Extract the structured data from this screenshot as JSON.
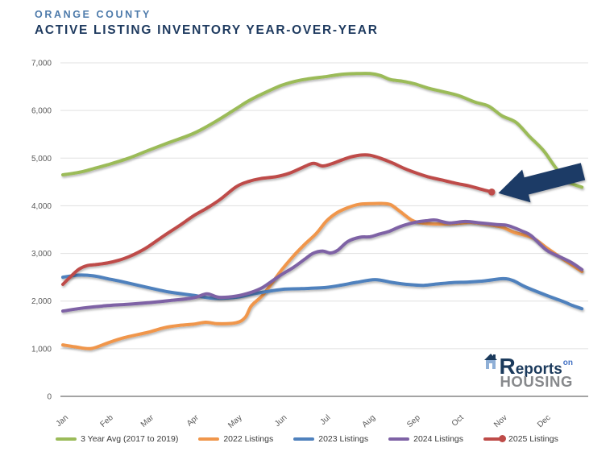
{
  "header": {
    "kicker": "ORANGE COUNTY",
    "title": "ACTIVE LISTING INVENTORY YEAR-OVER-YEAR"
  },
  "logo": {
    "word1": "Reports",
    "word2": "on",
    "word3": "HOUSING"
  },
  "colors": {
    "kicker": "#4E7BAB",
    "title": "#1E3A5F",
    "gridline": "#E0E0E0",
    "axis_line": "#6E6E6E",
    "axis_text": "#595959",
    "legend_text": "#3A3A3A",
    "logo_navy": "#1B3A5C",
    "logo_blue": "#4472C4",
    "logo_gray": "#87898C",
    "logo_house": "#8FAFD6"
  },
  "chart_data": {
    "type": "line",
    "title": "Active Listing Inventory Year-Over-Year",
    "x_axis": {
      "week_span": 51.5,
      "ticks": [
        {
          "label": "Jan",
          "week": 0
        },
        {
          "label": "Feb",
          "week": 4.43
        },
        {
          "label": "Mar",
          "week": 8.43
        },
        {
          "label": "Apr",
          "week": 12.86
        },
        {
          "label": "May",
          "week": 17.14
        },
        {
          "label": "Jun",
          "week": 21.57
        },
        {
          "label": "Jul",
          "week": 25.86
        },
        {
          "label": "Aug",
          "week": 30.29
        },
        {
          "label": "Sep",
          "week": 34.71
        },
        {
          "label": "Oct",
          "week": 39.0
        },
        {
          "label": "Nov",
          "week": 43.29
        },
        {
          "label": "Dec",
          "week": 47.57
        }
      ]
    },
    "y_axis": {
      "min": 0,
      "max": 7000,
      "step": 1000,
      "ticks": [
        {
          "value": 0,
          "label": "0"
        },
        {
          "value": 1000,
          "label": "1,000"
        },
        {
          "value": 2000,
          "label": "2,000"
        },
        {
          "value": 3000,
          "label": "3,000"
        },
        {
          "value": 4000,
          "label": "4,000"
        },
        {
          "value": 5000,
          "label": "5,000"
        },
        {
          "value": 6000,
          "label": "6,000"
        },
        {
          "value": 7000,
          "label": "7,000"
        }
      ],
      "grid": true
    },
    "legend_position": "bottom",
    "series": [
      {
        "name": "3 Year Avg (2017 to 2019)",
        "color": "#9BBB59",
        "end_marker": false,
        "points": [
          [
            0,
            4650
          ],
          [
            1,
            4680
          ],
          [
            2,
            4720
          ],
          [
            3.2,
            4790
          ],
          [
            4.4,
            4860
          ],
          [
            6.5,
            5000
          ],
          [
            8.4,
            5160
          ],
          [
            10.5,
            5330
          ],
          [
            12.9,
            5520
          ],
          [
            15,
            5760
          ],
          [
            17.1,
            6040
          ],
          [
            18.3,
            6200
          ],
          [
            19.5,
            6330
          ],
          [
            21.6,
            6530
          ],
          [
            23.5,
            6640
          ],
          [
            25.9,
            6710
          ],
          [
            27.5,
            6760
          ],
          [
            29,
            6775
          ],
          [
            30.3,
            6775
          ],
          [
            31.3,
            6735
          ],
          [
            32.3,
            6650
          ],
          [
            33.5,
            6615
          ],
          [
            34.7,
            6560
          ],
          [
            36,
            6470
          ],
          [
            37.3,
            6405
          ],
          [
            39,
            6315
          ],
          [
            40.6,
            6180
          ],
          [
            42,
            6090
          ],
          [
            43.3,
            5890
          ],
          [
            44.7,
            5750
          ],
          [
            46,
            5460
          ],
          [
            47.4,
            5160
          ],
          [
            48.5,
            4830
          ],
          [
            49.7,
            4520
          ],
          [
            51.2,
            4390
          ]
        ]
      },
      {
        "name": "2022 Listings",
        "color": "#F0964B",
        "end_marker": false,
        "points": [
          [
            0,
            1080
          ],
          [
            1.2,
            1040
          ],
          [
            2.8,
            1005
          ],
          [
            4.4,
            1120
          ],
          [
            6,
            1230
          ],
          [
            8.4,
            1345
          ],
          [
            10,
            1440
          ],
          [
            11.5,
            1490
          ],
          [
            12.9,
            1515
          ],
          [
            14.1,
            1555
          ],
          [
            15.3,
            1525
          ],
          [
            17.1,
            1545
          ],
          [
            18,
            1660
          ],
          [
            18.6,
            1900
          ],
          [
            19.7,
            2120
          ],
          [
            20.7,
            2400
          ],
          [
            21.6,
            2660
          ],
          [
            22.8,
            2960
          ],
          [
            23.9,
            3200
          ],
          [
            25,
            3420
          ],
          [
            26,
            3680
          ],
          [
            27,
            3850
          ],
          [
            28.1,
            3960
          ],
          [
            29.2,
            4030
          ],
          [
            30.3,
            4045
          ],
          [
            31.4,
            4050
          ],
          [
            32.3,
            4025
          ],
          [
            33.2,
            3890
          ],
          [
            34.4,
            3700
          ],
          [
            35.2,
            3645
          ],
          [
            36.5,
            3620
          ],
          [
            38,
            3620
          ],
          [
            39.2,
            3635
          ],
          [
            40.3,
            3650
          ],
          [
            41.5,
            3620
          ],
          [
            43.3,
            3550
          ],
          [
            44.5,
            3445
          ],
          [
            46.3,
            3330
          ],
          [
            47.7,
            3120
          ],
          [
            49,
            2930
          ],
          [
            50.2,
            2760
          ],
          [
            51.2,
            2620
          ]
        ]
      },
      {
        "name": "2023 Listings",
        "color": "#4F81BD",
        "end_marker": false,
        "points": [
          [
            0,
            2500
          ],
          [
            1.5,
            2545
          ],
          [
            3,
            2530
          ],
          [
            4.4,
            2470
          ],
          [
            6,
            2400
          ],
          [
            8.4,
            2285
          ],
          [
            10.5,
            2190
          ],
          [
            12.9,
            2120
          ],
          [
            14.8,
            2060
          ],
          [
            17.1,
            2080
          ],
          [
            19,
            2160
          ],
          [
            21.6,
            2245
          ],
          [
            23.5,
            2260
          ],
          [
            25.9,
            2285
          ],
          [
            27.5,
            2335
          ],
          [
            29,
            2395
          ],
          [
            30.8,
            2450
          ],
          [
            32.5,
            2390
          ],
          [
            34.2,
            2345
          ],
          [
            35.6,
            2330
          ],
          [
            37,
            2360
          ],
          [
            38.6,
            2390
          ],
          [
            40,
            2400
          ],
          [
            41.6,
            2425
          ],
          [
            43.4,
            2470
          ],
          [
            44.4,
            2430
          ],
          [
            45.6,
            2300
          ],
          [
            47.7,
            2120
          ],
          [
            49.3,
            1995
          ],
          [
            50.3,
            1905
          ],
          [
            51.2,
            1840
          ]
        ]
      },
      {
        "name": "2024 Listings",
        "color": "#7E62A5",
        "end_marker": false,
        "points": [
          [
            0,
            1790
          ],
          [
            2,
            1855
          ],
          [
            4.4,
            1905
          ],
          [
            6.5,
            1935
          ],
          [
            8.4,
            1965
          ],
          [
            10.5,
            2010
          ],
          [
            12.9,
            2070
          ],
          [
            14.2,
            2150
          ],
          [
            15.4,
            2080
          ],
          [
            17.1,
            2105
          ],
          [
            18.6,
            2185
          ],
          [
            19.7,
            2285
          ],
          [
            20.7,
            2430
          ],
          [
            21.6,
            2560
          ],
          [
            22.8,
            2715
          ],
          [
            23.9,
            2885
          ],
          [
            24.7,
            3005
          ],
          [
            25.6,
            3050
          ],
          [
            26.4,
            3010
          ],
          [
            27.1,
            3065
          ],
          [
            28.1,
            3250
          ],
          [
            29.3,
            3340
          ],
          [
            30.3,
            3350
          ],
          [
            31.2,
            3405
          ],
          [
            32.2,
            3465
          ],
          [
            33.3,
            3565
          ],
          [
            34.7,
            3650
          ],
          [
            36,
            3690
          ],
          [
            36.8,
            3700
          ],
          [
            38.1,
            3640
          ],
          [
            39.7,
            3670
          ],
          [
            41.2,
            3640
          ],
          [
            42.8,
            3605
          ],
          [
            43.9,
            3585
          ],
          [
            45.4,
            3460
          ],
          [
            46.2,
            3370
          ],
          [
            47.7,
            3070
          ],
          [
            49,
            2930
          ],
          [
            50.2,
            2805
          ],
          [
            51.2,
            2660
          ]
        ]
      },
      {
        "name": "2025 Listings",
        "color": "#BE4B48",
        "end_marker": true,
        "points": [
          [
            0,
            2350
          ],
          [
            0.8,
            2520
          ],
          [
            1.6,
            2670
          ],
          [
            2.4,
            2745
          ],
          [
            3.2,
            2765
          ],
          [
            4.4,
            2800
          ],
          [
            5.5,
            2855
          ],
          [
            6.5,
            2930
          ],
          [
            7.5,
            3030
          ],
          [
            8.4,
            3140
          ],
          [
            10,
            3375
          ],
          [
            11.5,
            3585
          ],
          [
            12.9,
            3790
          ],
          [
            14.2,
            3950
          ],
          [
            15.5,
            4130
          ],
          [
            17.1,
            4400
          ],
          [
            18.3,
            4510
          ],
          [
            19.5,
            4570
          ],
          [
            21,
            4610
          ],
          [
            22.3,
            4680
          ],
          [
            23.6,
            4800
          ],
          [
            24.7,
            4890
          ],
          [
            25.6,
            4835
          ],
          [
            26.5,
            4880
          ],
          [
            27.5,
            4960
          ],
          [
            28.5,
            5030
          ],
          [
            29.5,
            5065
          ],
          [
            30.3,
            5060
          ],
          [
            31.3,
            5000
          ],
          [
            32.5,
            4900
          ],
          [
            33.6,
            4790
          ],
          [
            34.7,
            4700
          ],
          [
            36,
            4610
          ],
          [
            37.3,
            4545
          ],
          [
            38.7,
            4475
          ],
          [
            40,
            4420
          ],
          [
            41.2,
            4350
          ],
          [
            42.3,
            4290
          ]
        ]
      }
    ],
    "annotation_arrow": {
      "color": "#1F3B66",
      "tip": [
        42.95,
        4265
      ],
      "tail": [
        51.3,
        4720
      ],
      "points_at": "2025 Listings last value (~4,290 in late October)"
    }
  }
}
